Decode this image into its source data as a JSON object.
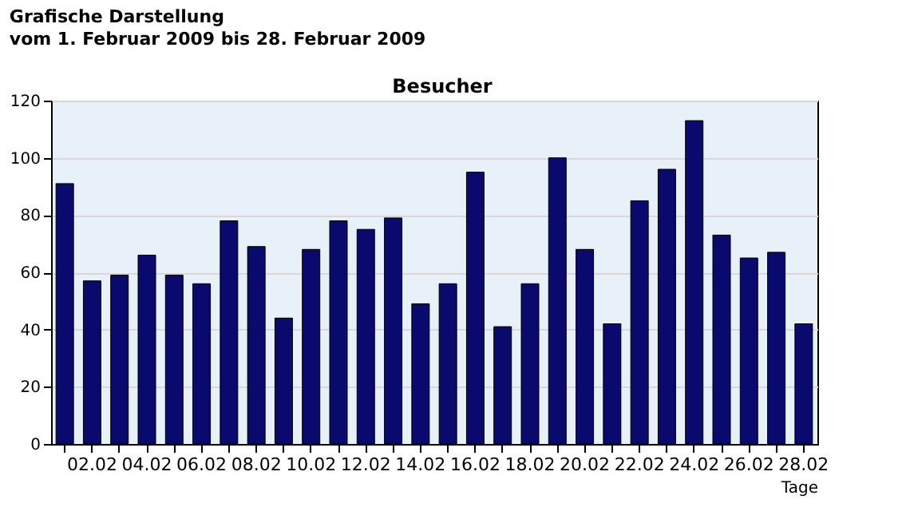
{
  "chart_data": {
    "type": "bar",
    "title": "Grafische Darstellung",
    "subtitle": "vom 1. Februar 2009  bis  28. Februar 2009",
    "annotations": [
      "Besucher"
    ],
    "xlabel": "Tage",
    "categories": [
      null,
      "02.02",
      null,
      "04.02",
      null,
      "06.02",
      null,
      "08.02",
      null,
      "10.02",
      null,
      "12.02",
      null,
      "14.02",
      null,
      "16.02",
      null,
      "18.02",
      null,
      "20.02",
      null,
      "22.02",
      null,
      "24.02",
      null,
      "26.02",
      null,
      "28.02"
    ],
    "values": [
      91,
      57,
      59,
      66,
      59,
      56,
      78,
      69,
      44,
      68,
      78,
      75,
      79,
      49,
      56,
      95,
      41,
      56,
      100,
      68,
      42,
      85,
      96,
      113,
      73,
      65,
      67,
      42
    ],
    "color": "#0a0a6e",
    "ylim": [
      0,
      120
    ],
    "yticks": [
      0,
      20,
      40,
      60,
      80,
      100,
      120
    ],
    "grid": "y"
  }
}
